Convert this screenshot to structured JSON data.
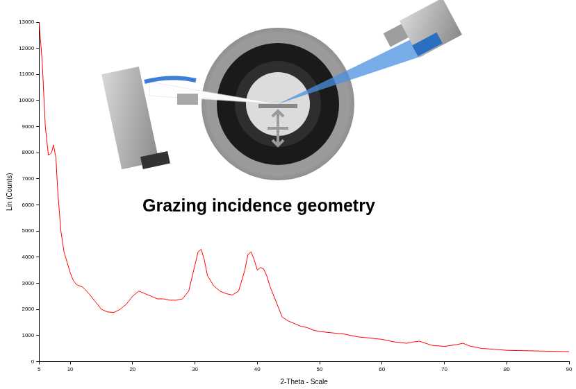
{
  "chart_data": {
    "type": "line",
    "x_label": "2-Theta - Scale",
    "y_label": "Lin (Counts)",
    "annotations": [
      "Grazing incidence geometry"
    ],
    "color": "#ff0000",
    "x": [
      5,
      5.5,
      6,
      6.5,
      7,
      7.3,
      7.7,
      8,
      8.5,
      9,
      9.5,
      10,
      10.5,
      11,
      12,
      13,
      14,
      15,
      16,
      17,
      18,
      19,
      20,
      21,
      22,
      23,
      24,
      25,
      26,
      27,
      28,
      29,
      30,
      30.5,
      31,
      31.5,
      32,
      33,
      34,
      35,
      36,
      37,
      38,
      38.5,
      39,
      39.5,
      40,
      40.5,
      41,
      41.5,
      42,
      43,
      44,
      45,
      46,
      47,
      48,
      49,
      50,
      52,
      54,
      56,
      58,
      60,
      62,
      64,
      65,
      66,
      67,
      68,
      70,
      72,
      73,
      74,
      76,
      78,
      80,
      82,
      84,
      86,
      88,
      90
    ],
    "values": [
      13000,
      11500,
      9000,
      7900,
      8000,
      8300,
      7800,
      6500,
      5000,
      4200,
      3800,
      3400,
      3100,
      2950,
      2850,
      2600,
      2300,
      2000,
      1900,
      1880,
      2000,
      2200,
      2500,
      2700,
      2600,
      2500,
      2400,
      2400,
      2350,
      2350,
      2400,
      2700,
      3700,
      4200,
      4300,
      3900,
      3300,
      2900,
      2700,
      2600,
      2550,
      2700,
      3500,
      4100,
      4200,
      3900,
      3500,
      3600,
      3550,
      3300,
      2900,
      2300,
      1700,
      1550,
      1450,
      1350,
      1300,
      1200,
      1150,
      1100,
      1050,
      950,
      900,
      850,
      750,
      700,
      750,
      780,
      700,
      620,
      580,
      650,
      700,
      600,
      500,
      470,
      430,
      420,
      410,
      400,
      390,
      380
    ],
    "xlim": [
      5,
      90
    ],
    "ylim": [
      0,
      13000
    ],
    "xticks": [
      5,
      10,
      20,
      30,
      40,
      50,
      60,
      70,
      80,
      90
    ],
    "yticks": [
      0,
      1000,
      2000,
      3000,
      4000,
      5000,
      6000,
      7000,
      8000,
      9000,
      10000,
      11000,
      12000,
      13000
    ],
    "grid": false
  }
}
